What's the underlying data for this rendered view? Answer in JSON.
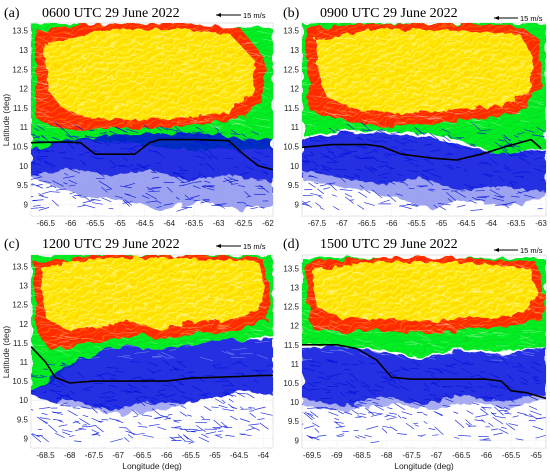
{
  "chart_data": [
    {
      "panel": "(a)",
      "type": "vector-field",
      "title": "0600 UTC 29 June 2022",
      "xlabel": "",
      "ylabel": "Latitude (deg)",
      "x_ticks": [
        -66.5,
        -66,
        -65.5,
        -65,
        -64.5,
        -64,
        -63.5,
        -63,
        -62.5,
        -62
      ],
      "y_ticks": [
        9,
        9.5,
        10,
        10.5,
        11,
        11.5,
        12,
        12.5,
        13,
        13.5
      ],
      "xlim": [
        -66.8,
        -61.9
      ],
      "ylim": [
        8.7,
        13.7
      ],
      "reference_vector": "15 m/s",
      "coastline": [
        [
          -66.8,
          10.6
        ],
        [
          -66.2,
          10.62
        ],
        [
          -65.8,
          10.6
        ],
        [
          -65.5,
          10.3
        ],
        [
          -65.2,
          10.3
        ],
        [
          -64.7,
          10.3
        ],
        [
          -64.4,
          10.6
        ],
        [
          -64.2,
          10.68
        ],
        [
          -63.5,
          10.68
        ],
        [
          -62.8,
          10.65
        ],
        [
          -62.5,
          10.3
        ],
        [
          -62.2,
          10.0
        ],
        [
          -61.9,
          9.9
        ]
      ]
    },
    {
      "panel": "(b)",
      "type": "vector-field",
      "title": "0900 UTC 29 June 2022",
      "xlabel": "",
      "ylabel": "",
      "x_ticks": [
        -67.5,
        -67,
        -66.5,
        -66,
        -65.5,
        -65,
        -64.5,
        -64,
        -63.5,
        -63
      ],
      "y_ticks": [
        9,
        9.5,
        10,
        10.5,
        11,
        11.5,
        12,
        12.5,
        13,
        13.5
      ],
      "xlim": [
        -67.8,
        -62.9
      ],
      "ylim": [
        8.7,
        13.7
      ],
      "reference_vector": "15 m/s",
      "coastline": [
        [
          -67.8,
          10.48
        ],
        [
          -67.2,
          10.55
        ],
        [
          -66.5,
          10.55
        ],
        [
          -66.2,
          10.5
        ],
        [
          -65.8,
          10.3
        ],
        [
          -65.2,
          10.2
        ],
        [
          -64.7,
          10.15
        ],
        [
          -64.2,
          10.3
        ],
        [
          -63.7,
          10.5
        ],
        [
          -63.2,
          10.68
        ],
        [
          -63.0,
          10.45
        ]
      ]
    },
    {
      "panel": "(c)",
      "type": "vector-field",
      "title": "1200 UTC 29 June 2022",
      "xlabel": "Longitude (deg)",
      "ylabel": "Latitude (deg)",
      "x_ticks": [
        -68.5,
        -68,
        -67.5,
        -67,
        -66.5,
        -66,
        -65.5,
        -65,
        -64.5,
        -64
      ],
      "y_ticks": [
        9,
        9.5,
        10,
        10.5,
        11,
        11.5,
        12,
        12.5,
        13,
        13.5
      ],
      "xlim": [
        -68.8,
        -63.8
      ],
      "ylim": [
        8.75,
        13.8
      ],
      "reference_vector": "15 m/s",
      "coastline": [
        [
          -68.8,
          11.4
        ],
        [
          -68.5,
          11.0
        ],
        [
          -68.3,
          10.6
        ],
        [
          -68.0,
          10.45
        ],
        [
          -67.5,
          10.5
        ],
        [
          -67.0,
          10.5
        ],
        [
          -66.5,
          10.5
        ],
        [
          -66.0,
          10.5
        ],
        [
          -65.5,
          10.58
        ],
        [
          -65.0,
          10.6
        ],
        [
          -64.5,
          10.62
        ],
        [
          -64.0,
          10.65
        ],
        [
          -63.8,
          10.65
        ]
      ]
    },
    {
      "panel": "(d)",
      "type": "vector-field",
      "title": "1500 UTC 29 June 2022",
      "xlabel": "Longitude (deg)",
      "ylabel": "",
      "x_ticks": [
        -69.5,
        -69,
        -68.5,
        -68,
        -67.5,
        -67,
        -66.5,
        -66,
        -65.5,
        -65
      ],
      "y_ticks": [
        9,
        9.5,
        10,
        10.5,
        11,
        11.5,
        12,
        12.5,
        13,
        13.5
      ],
      "xlim": [
        -69.7,
        -64.8
      ],
      "ylim": [
        8.8,
        13.85
      ],
      "reference_vector": "15 m/s",
      "coastline": [
        [
          -69.7,
          11.5
        ],
        [
          -69.0,
          11.5
        ],
        [
          -68.6,
          11.4
        ],
        [
          -68.2,
          11.1
        ],
        [
          -67.9,
          10.65
        ],
        [
          -67.5,
          10.6
        ],
        [
          -67.0,
          10.6
        ],
        [
          -66.5,
          10.6
        ],
        [
          -66.0,
          10.6
        ],
        [
          -65.7,
          10.55
        ],
        [
          -65.5,
          10.3
        ],
        [
          -65.2,
          10.25
        ],
        [
          -64.8,
          10.1
        ]
      ]
    }
  ],
  "colors": {
    "strong": "#ff2a00",
    "moderate": "#ffe600",
    "light": "#00ee22",
    "weak": "#0011dd",
    "coast": "#000000",
    "grid": "#e6e6e6"
  }
}
